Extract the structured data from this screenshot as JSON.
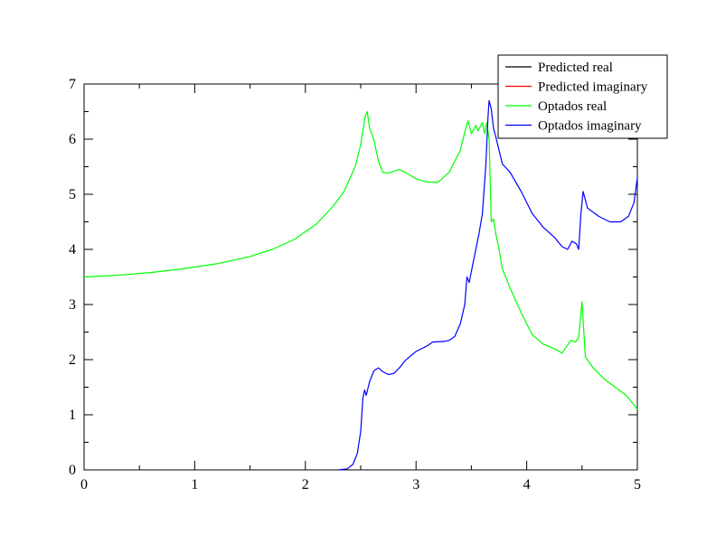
{
  "chart_data": {
    "type": "line",
    "title": "",
    "xlabel": "",
    "ylabel": "",
    "xlim": [
      0,
      5
    ],
    "ylim": [
      0,
      7
    ],
    "x_ticks": [
      0,
      1,
      2,
      3,
      4,
      5
    ],
    "y_ticks": [
      0,
      1,
      2,
      3,
      4,
      5,
      6,
      7
    ],
    "grid": false,
    "legend_position": "top-right",
    "series": [
      {
        "name": "Predicted real",
        "color": "#000000",
        "points": []
      },
      {
        "name": "Predicted imaginary",
        "color": "#ff0000",
        "points": []
      },
      {
        "name": "Optados real",
        "color": "#00ff00",
        "points": [
          [
            0.0,
            3.5
          ],
          [
            0.3,
            3.53
          ],
          [
            0.6,
            3.58
          ],
          [
            0.9,
            3.65
          ],
          [
            1.2,
            3.74
          ],
          [
            1.5,
            3.87
          ],
          [
            1.7,
            4.0
          ],
          [
            1.9,
            4.18
          ],
          [
            2.1,
            4.46
          ],
          [
            2.25,
            4.78
          ],
          [
            2.35,
            5.05
          ],
          [
            2.45,
            5.5
          ],
          [
            2.5,
            5.9
          ],
          [
            2.54,
            6.42
          ],
          [
            2.56,
            6.5
          ],
          [
            2.58,
            6.2
          ],
          [
            2.62,
            5.98
          ],
          [
            2.66,
            5.6
          ],
          [
            2.7,
            5.4
          ],
          [
            2.75,
            5.38
          ],
          [
            2.8,
            5.42
          ],
          [
            2.85,
            5.45
          ],
          [
            2.9,
            5.4
          ],
          [
            3.0,
            5.28
          ],
          [
            3.1,
            5.22
          ],
          [
            3.2,
            5.22
          ],
          [
            3.3,
            5.4
          ],
          [
            3.4,
            5.8
          ],
          [
            3.45,
            6.2
          ],
          [
            3.47,
            6.33
          ],
          [
            3.5,
            6.1
          ],
          [
            3.54,
            6.25
          ],
          [
            3.56,
            6.15
          ],
          [
            3.6,
            6.3
          ],
          [
            3.62,
            6.1
          ],
          [
            3.64,
            6.3
          ],
          [
            3.66,
            6.0
          ],
          [
            3.68,
            4.5
          ],
          [
            3.7,
            4.55
          ],
          [
            3.72,
            4.3
          ],
          [
            3.75,
            4.0
          ],
          [
            3.78,
            3.65
          ],
          [
            3.85,
            3.3
          ],
          [
            3.95,
            2.85
          ],
          [
            4.05,
            2.45
          ],
          [
            4.15,
            2.28
          ],
          [
            4.25,
            2.2
          ],
          [
            4.32,
            2.12
          ],
          [
            4.4,
            2.35
          ],
          [
            4.44,
            2.32
          ],
          [
            4.47,
            2.4
          ],
          [
            4.5,
            3.05
          ],
          [
            4.53,
            2.05
          ],
          [
            4.6,
            1.85
          ],
          [
            4.7,
            1.65
          ],
          [
            4.8,
            1.5
          ],
          [
            4.9,
            1.35
          ],
          [
            5.0,
            1.1
          ]
        ]
      },
      {
        "name": "Optados imaginary",
        "color": "#0000ff",
        "points": [
          [
            2.3,
            0.0
          ],
          [
            2.38,
            0.02
          ],
          [
            2.43,
            0.1
          ],
          [
            2.47,
            0.3
          ],
          [
            2.5,
            0.7
          ],
          [
            2.52,
            1.3
          ],
          [
            2.535,
            1.45
          ],
          [
            2.55,
            1.35
          ],
          [
            2.58,
            1.6
          ],
          [
            2.62,
            1.8
          ],
          [
            2.66,
            1.85
          ],
          [
            2.7,
            1.78
          ],
          [
            2.75,
            1.73
          ],
          [
            2.8,
            1.75
          ],
          [
            2.85,
            1.85
          ],
          [
            2.9,
            1.98
          ],
          [
            3.0,
            2.15
          ],
          [
            3.1,
            2.25
          ],
          [
            3.15,
            2.32
          ],
          [
            3.25,
            2.33
          ],
          [
            3.3,
            2.35
          ],
          [
            3.35,
            2.42
          ],
          [
            3.4,
            2.65
          ],
          [
            3.44,
            3.0
          ],
          [
            3.46,
            3.5
          ],
          [
            3.48,
            3.4
          ],
          [
            3.5,
            3.6
          ],
          [
            3.54,
            4.0
          ],
          [
            3.57,
            4.3
          ],
          [
            3.6,
            4.65
          ],
          [
            3.63,
            5.5
          ],
          [
            3.65,
            6.4
          ],
          [
            3.66,
            6.7
          ],
          [
            3.68,
            6.55
          ],
          [
            3.7,
            6.2
          ],
          [
            3.72,
            6.05
          ],
          [
            3.75,
            5.8
          ],
          [
            3.78,
            5.55
          ],
          [
            3.85,
            5.4
          ],
          [
            3.95,
            5.05
          ],
          [
            4.05,
            4.65
          ],
          [
            4.15,
            4.4
          ],
          [
            4.25,
            4.22
          ],
          [
            4.32,
            4.05
          ],
          [
            4.37,
            4.0
          ],
          [
            4.41,
            4.15
          ],
          [
            4.45,
            4.1
          ],
          [
            4.47,
            4.0
          ],
          [
            4.49,
            4.65
          ],
          [
            4.51,
            5.05
          ],
          [
            4.55,
            4.75
          ],
          [
            4.65,
            4.6
          ],
          [
            4.75,
            4.5
          ],
          [
            4.85,
            4.5
          ],
          [
            4.92,
            4.6
          ],
          [
            4.97,
            4.85
          ],
          [
            5.0,
            5.3
          ]
        ]
      }
    ]
  }
}
